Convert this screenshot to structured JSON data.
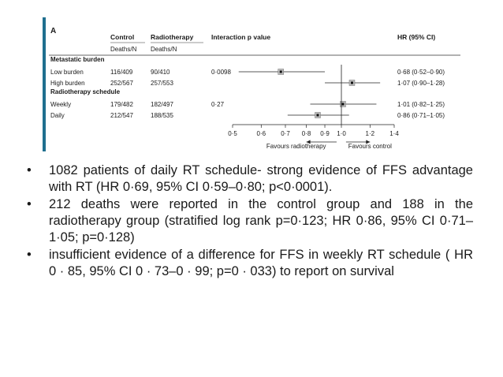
{
  "figure": {
    "panel": "A",
    "headers": {
      "control": "Control",
      "radiotherapy": "Radiotherapy",
      "interaction": "Interaction p value",
      "hr": "HR (95% CI)",
      "control_sub": "Deaths/N",
      "radiotherapy_sub": "Deaths/N"
    },
    "groups": [
      {
        "label": "Metastatic burden",
        "rows": [
          {
            "label": "Low burden",
            "control": "116/409",
            "radiotherapy": "90/410",
            "p": "0·0098",
            "hr_text": "0·68 (0·52–0·90)",
            "hr": 0.68,
            "lo": 0.52,
            "hi": 0.9
          },
          {
            "label": "High burden",
            "control": "252/567",
            "radiotherapy": "257/553",
            "p": "",
            "hr_text": "1·07 (0·90–1·28)",
            "hr": 1.07,
            "lo": 0.9,
            "hi": 1.28
          }
        ]
      },
      {
        "label": "Radiotherapy schedule",
        "rows": [
          {
            "label": "Weekly",
            "control": "179/482",
            "radiotherapy": "182/497",
            "p": "0·27",
            "hr_text": "1·01 (0·82–1·25)",
            "hr": 1.01,
            "lo": 0.82,
            "hi": 1.25
          },
          {
            "label": "Daily",
            "control": "212/547",
            "radiotherapy": "188/535",
            "p": "",
            "hr_text": "0·86 (0·71–1·05)",
            "hr": 0.86,
            "lo": 0.71,
            "hi": 1.05
          }
        ]
      }
    ],
    "axis": {
      "ticks": [
        0.5,
        0.6,
        0.7,
        0.8,
        0.9,
        1.0,
        1.2,
        1.4
      ],
      "tick_labels": [
        "0·5",
        "0·6",
        "0·7",
        "0·8",
        "0·9",
        "1·0",
        "1·2",
        "1·4"
      ],
      "scale": "log",
      "left_label": "Favours radiotherapy",
      "right_label": "Favours control"
    }
  },
  "bullets": [
    "1082 patients of daily RT  schedule- strong evidence of FFS advantage with RT  (HR 0·69, 95% CI 0·59–0·80; p<0·0001).",
    "212 deaths were reported in the control group and 188 in the radiotherapy group (stratified log rank p=0·123; HR 0·86, 95% CI 0·71–1·05; p=0·128)",
    "insufficient evidence of a difference for FFS in weekly RT schedule ( HR 0 · 85, 95% CI 0 · 73–0 · 99; p=0 · 033) to report on survival"
  ],
  "bullet_symbol": "•"
}
